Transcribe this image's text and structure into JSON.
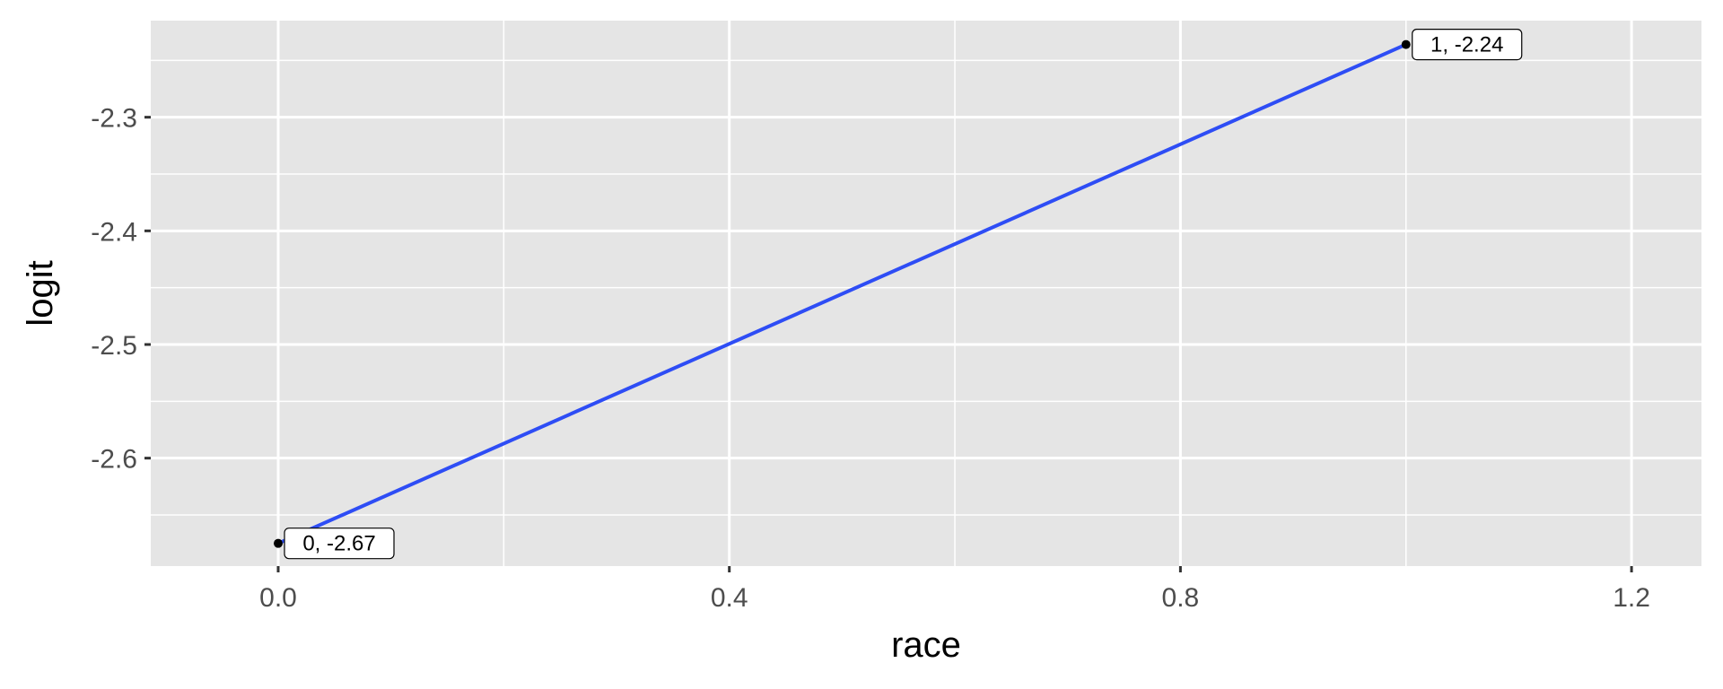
{
  "chart_data": {
    "type": "line",
    "title": "",
    "xlabel": "race",
    "ylabel": "logit",
    "xlim": [
      -0.113,
      1.262
    ],
    "ylim": [
      -2.695,
      -2.215
    ],
    "x_ticks": [
      "0.0",
      "0.4",
      "0.8",
      "1.2"
    ],
    "y_ticks": [
      "-2.3",
      "-2.4",
      "-2.5",
      "-2.6"
    ],
    "x_tick_values": [
      0.0,
      0.4,
      0.8,
      1.2
    ],
    "y_tick_values": [
      -2.3,
      -2.4,
      -2.5,
      -2.6
    ],
    "x_minor_values": [
      0.2,
      0.6,
      1.0
    ],
    "y_minor_values": [
      -2.25,
      -2.35,
      -2.45,
      -2.55,
      -2.65
    ],
    "grid": true,
    "series": [
      {
        "x": [
          0,
          1
        ],
        "y": [
          -2.675,
          -2.236
        ],
        "labels": [
          "0, -2.67",
          "1, -2.24"
        ]
      }
    ],
    "colors": {
      "line": "#2e4df5",
      "point": "#000000",
      "panel": "#e5e5e5",
      "grid": "#ffffff"
    }
  }
}
